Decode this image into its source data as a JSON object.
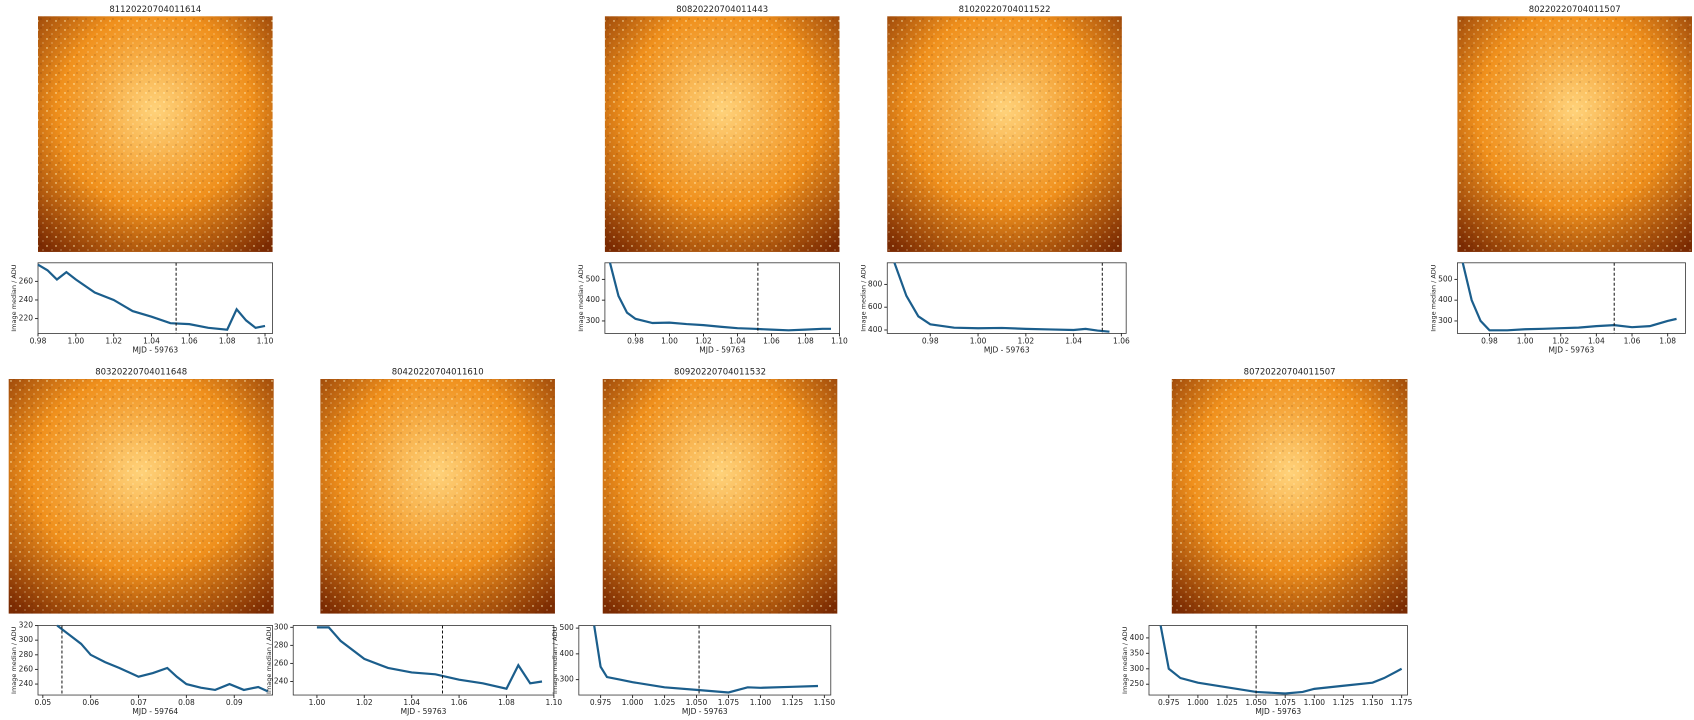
{
  "chart_data": [
    {
      "type": "line",
      "title": "81120220704011614",
      "xlabel": "MJD - 59763",
      "ylabel": "Image median / ADU",
      "color": "#1b5e8c",
      "x": [
        0.98,
        0.985,
        0.99,
        0.995,
        1.0,
        1.01,
        1.02,
        1.03,
        1.04,
        1.05,
        1.06,
        1.07,
        1.08,
        1.085,
        1.09,
        1.095,
        1.1
      ],
      "values": [
        278,
        272,
        262,
        270,
        262,
        248,
        240,
        228,
        222,
        215,
        214,
        210,
        208,
        230,
        218,
        210,
        212
      ],
      "marker_x": 1.053,
      "xlim": [
        0.98,
        1.104
      ],
      "ylim": [
        204,
        280
      ],
      "xticks": [
        0.98,
        {
          "value": 1.0,
          "label": "1.00"
        },
        1.02,
        1.04,
        1.06,
        1.08,
        {
          "value": 1.1,
          "label": "1.10"
        }
      ],
      "yticks": [
        220,
        240,
        260
      ]
    },
    {
      "type": "line",
      "title": "80820220704011443",
      "xlabel": "MJD - 59763",
      "ylabel": "Image median / ADU",
      "color": "#1b5e8c",
      "x": [
        0.965,
        0.97,
        0.975,
        0.98,
        0.99,
        1.0,
        1.01,
        1.02,
        1.03,
        1.04,
        1.05,
        1.06,
        1.07,
        1.08,
        1.09,
        1.095
      ],
      "values": [
        580,
        420,
        340,
        310,
        290,
        292,
        285,
        280,
        272,
        265,
        262,
        258,
        255,
        258,
        262,
        262
      ],
      "marker_x": 1.052,
      "xlim": [
        0.962,
        1.1
      ],
      "ylim": [
        240,
        580
      ],
      "xticks": [
        0.98,
        {
          "value": 1.0,
          "label": "1.00"
        },
        1.02,
        1.04,
        1.06,
        1.08,
        {
          "value": 1.1,
          "label": "1.10"
        }
      ],
      "yticks": [
        300,
        400,
        500
      ]
    },
    {
      "type": "line",
      "title": "81020220704011522",
      "xlabel": "MJD - 59763",
      "ylabel": "Image median / ADU",
      "color": "#1b5e8c",
      "x": [
        0.965,
        0.97,
        0.975,
        0.98,
        0.99,
        1.0,
        1.01,
        1.02,
        1.03,
        1.04,
        1.045,
        1.05,
        1.055
      ],
      "values": [
        990,
        700,
        520,
        450,
        420,
        415,
        418,
        410,
        405,
        400,
        410,
        395,
        385
      ],
      "marker_x": 1.052,
      "xlim": [
        0.962,
        1.062
      ],
      "ylim": [
        370,
        990
      ],
      "xticks": [
        0.98,
        {
          "value": 1.0,
          "label": "1.00"
        },
        1.02,
        1.04,
        1.06
      ],
      "yticks": [
        400,
        600,
        800
      ]
    },
    {
      "type": "line",
      "title": "80220220704011507",
      "xlabel": "MJD - 59763",
      "ylabel": "Image median / ADU",
      "color": "#1b5e8c",
      "x": [
        0.965,
        0.97,
        0.975,
        0.98,
        0.99,
        1.0,
        1.01,
        1.02,
        1.03,
        1.04,
        1.05,
        1.06,
        1.07,
        1.08,
        1.085
      ],
      "values": [
        580,
        400,
        300,
        255,
        255,
        260,
        262,
        265,
        268,
        275,
        280,
        270,
        275,
        300,
        310
      ],
      "marker_x": 1.05,
      "xlim": [
        0.962,
        1.09
      ],
      "ylim": [
        240,
        580
      ],
      "xticks": [
        0.98,
        {
          "value": 1.0,
          "label": "1.00"
        },
        1.02,
        1.04,
        1.06,
        1.08
      ],
      "yticks": [
        300,
        400,
        500
      ]
    },
    {
      "type": "line",
      "title": "80320220704011648",
      "xlabel": "MJD - 59764",
      "ylabel": "Image median / ADU",
      "color": "#1b5e8c",
      "x": [
        0.053,
        0.055,
        0.058,
        0.06,
        0.063,
        0.066,
        0.07,
        0.073,
        0.076,
        0.078,
        0.08,
        0.083,
        0.086,
        0.089,
        0.092,
        0.095,
        0.097
      ],
      "values": [
        320,
        310,
        295,
        280,
        270,
        262,
        250,
        255,
        262,
        250,
        240,
        235,
        232,
        240,
        232,
        236,
        230
      ],
      "marker_x": 0.054,
      "xlim": [
        0.049,
        0.098
      ],
      "ylim": [
        225,
        320
      ],
      "xticks": [
        0.05,
        0.06,
        0.07,
        0.08,
        0.09
      ],
      "yticks": [
        240,
        260,
        280,
        300,
        320
      ]
    },
    {
      "type": "line",
      "title": "80420220704011610",
      "xlabel": "MJD - 59763",
      "ylabel": "Image median / ADU",
      "color": "#1b5e8c",
      "x": [
        1.0,
        1.005,
        1.01,
        1.02,
        1.03,
        1.04,
        1.05,
        1.06,
        1.07,
        1.08,
        1.085,
        1.09,
        1.095
      ],
      "values": [
        300,
        300,
        285,
        265,
        255,
        250,
        248,
        242,
        238,
        232,
        258,
        238,
        240
      ],
      "marker_x": 1.053,
      "xlim": [
        0.99,
        1.1
      ],
      "ylim": [
        225,
        302
      ],
      "xticks": [
        {
          "value": 1.0,
          "label": "1.00"
        },
        1.02,
        1.04,
        1.06,
        1.08,
        {
          "value": 1.1,
          "label": "1.10"
        }
      ],
      "yticks": [
        240,
        260,
        280,
        300
      ]
    },
    {
      "type": "line",
      "title": "80920220704011532",
      "xlabel": "MJD - 59763",
      "ylabel": "Image median / ADU",
      "color": "#1b5e8c",
      "x": [
        0.97,
        0.975,
        0.98,
        0.99,
        1.0,
        1.025,
        1.05,
        1.075,
        1.09,
        1.1,
        1.125,
        1.145
      ],
      "values": [
        510,
        350,
        310,
        300,
        290,
        270,
        260,
        250,
        270,
        268,
        272,
        275
      ],
      "marker_x": 1.052,
      "xlim": [
        0.958,
        1.155
      ],
      "ylim": [
        240,
        510
      ],
      "xticks": [
        0.975,
        {
          "value": 1.0,
          "label": "1.000"
        },
        1.025,
        {
          "value": 1.05,
          "label": "1.050"
        },
        1.075,
        {
          "value": 1.1,
          "label": "1.100"
        },
        1.125,
        {
          "value": 1.15,
          "label": "1.150"
        }
      ],
      "yticks": [
        300,
        400,
        500
      ]
    },
    {
      "type": "line",
      "title": "80720220704011507",
      "xlabel": "MJD - 59763",
      "ylabel": "Image median / ADU",
      "color": "#1b5e8c",
      "x": [
        0.968,
        0.975,
        0.985,
        1.0,
        1.025,
        1.05,
        1.075,
        1.09,
        1.1,
        1.125,
        1.15,
        1.16,
        1.175
      ],
      "values": [
        440,
        300,
        270,
        255,
        240,
        225,
        220,
        225,
        235,
        245,
        255,
        270,
        300
      ],
      "marker_x": 1.05,
      "xlim": [
        0.958,
        1.18
      ],
      "ylim": [
        215,
        440
      ],
      "xticks": [
        0.975,
        {
          "value": 1.0,
          "label": "1.000"
        },
        1.025,
        {
          "value": 1.05,
          "label": "1.050"
        },
        1.075,
        {
          "value": 1.1,
          "label": "1.100"
        },
        1.125,
        {
          "value": 1.15,
          "label": "1.150"
        },
        1.175
      ],
      "yticks": [
        250,
        300,
        350,
        400
      ]
    }
  ]
}
